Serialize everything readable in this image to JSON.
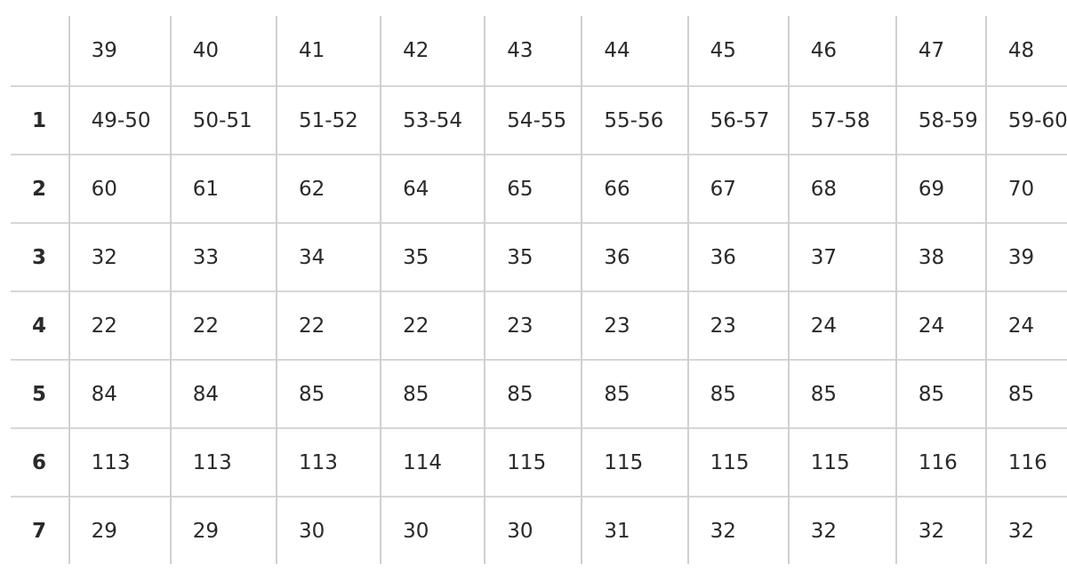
{
  "table": {
    "header": [
      "",
      "39",
      "40",
      "41",
      "42",
      "43",
      "44",
      "45",
      "46",
      "47",
      "48"
    ],
    "rows": [
      {
        "label": "1",
        "cells": [
          "49-50",
          "50-51",
          "51-52",
          "53-54",
          "54-55",
          "55-56",
          "56-57",
          "57-58",
          "58-59",
          "59-60"
        ]
      },
      {
        "label": "2",
        "cells": [
          "60",
          "61",
          "62",
          "64",
          "65",
          "66",
          "67",
          "68",
          "69",
          "70"
        ]
      },
      {
        "label": "3",
        "cells": [
          "32",
          "33",
          "34",
          "35",
          "35",
          "36",
          "36",
          "37",
          "38",
          "39"
        ]
      },
      {
        "label": "4",
        "cells": [
          "22",
          "22",
          "22",
          "22",
          "23",
          "23",
          "23",
          "24",
          "24",
          "24"
        ]
      },
      {
        "label": "5",
        "cells": [
          "84",
          "84",
          "85",
          "85",
          "85",
          "85",
          "85",
          "85",
          "85",
          "85"
        ]
      },
      {
        "label": "6",
        "cells": [
          "113",
          "113",
          "113",
          "114",
          "115",
          "115",
          "115",
          "115",
          "116",
          "116"
        ]
      },
      {
        "label": "7",
        "cells": [
          "29",
          "29",
          "30",
          "30",
          "30",
          "31",
          "32",
          "32",
          "32",
          "32"
        ]
      }
    ]
  }
}
